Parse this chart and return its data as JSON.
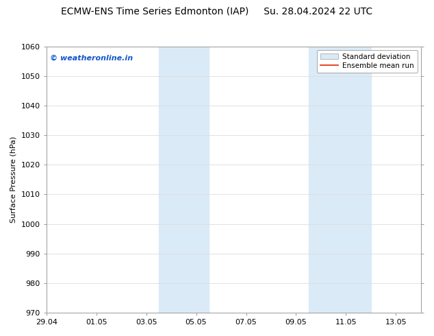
{
  "title": "ECMW-ENS Time Series Edmonton (IAP)     Su. 28.04.2024 22 UTC",
  "title_left": "ECMW-ENS Time Series Edmonton (IAP)",
  "title_right": "Su. 28.04.2024 22 UTC",
  "ylabel": "Surface Pressure (hPa)",
  "ylim": [
    970,
    1060
  ],
  "yticks": [
    970,
    980,
    990,
    1000,
    1010,
    1020,
    1030,
    1040,
    1050,
    1060
  ],
  "xtick_labels": [
    "29.04",
    "01.05",
    "03.05",
    "05.05",
    "07.05",
    "09.05",
    "11.05",
    "13.05"
  ],
  "xtick_positions": [
    0,
    2,
    4,
    6,
    8,
    10,
    12,
    14
  ],
  "xlim": [
    0,
    15
  ],
  "shaded_regions": [
    {
      "x_start": 4.5,
      "x_end": 6.5
    },
    {
      "x_start": 10.5,
      "x_end": 13.0
    }
  ],
  "shade_color": "#daeaf7",
  "watermark_text": "© weatheronline.in",
  "watermark_color": "#1155cc",
  "legend_std_label": "Standard deviation",
  "legend_mean_label": "Ensemble mean run",
  "std_patch_color": "#daeaf7",
  "std_patch_edge": "#aaaaaa",
  "mean_line_color": "#dd2200",
  "background_color": "#ffffff",
  "grid_color": "#dddddd",
  "spine_color": "#999999",
  "title_fontsize": 10,
  "axis_fontsize": 8,
  "watermark_fontsize": 8,
  "legend_fontsize": 7.5
}
